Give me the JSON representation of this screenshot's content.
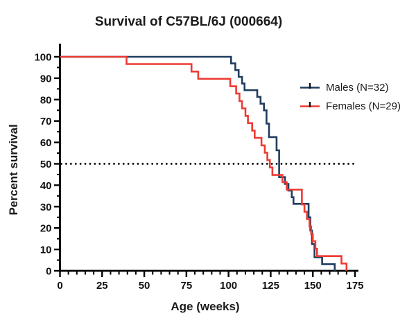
{
  "window": {
    "title": "Survival of C57BL/6J (000664)"
  },
  "chart_data": {
    "type": "line",
    "subtype": "kaplan-meier-survival-step",
    "title": "Survival of C57BL/6J (000664)",
    "xlabel": "Age (weeks)",
    "ylabel": "Percent survival",
    "xlim": [
      0,
      175
    ],
    "ylim": [
      0,
      100
    ],
    "x_ticks": [
      0,
      25,
      50,
      75,
      100,
      125,
      150,
      175
    ],
    "y_ticks": [
      0,
      10,
      20,
      30,
      40,
      50,
      60,
      70,
      80,
      90,
      100
    ],
    "x_minor_step": 5,
    "y_minor_step": 5,
    "grid": false,
    "legend_position": "right-upper-inside",
    "reference_line": {
      "y": 50,
      "style": "dotted",
      "color": "#000000"
    },
    "axis_color": "#000000",
    "series": [
      {
        "name": "Males (N=32)",
        "n": 32,
        "color": "#1F3D5F",
        "legend_marker": "line-with-censor-tick",
        "points": [
          [
            0,
            100
          ],
          [
            101.5,
            100
          ],
          [
            101.5,
            96.9
          ],
          [
            104,
            96.9
          ],
          [
            104,
            93.8
          ],
          [
            106,
            93.8
          ],
          [
            106,
            90.6
          ],
          [
            108,
            90.6
          ],
          [
            108,
            87.5
          ],
          [
            109.5,
            87.5
          ],
          [
            109.5,
            84.4
          ],
          [
            117,
            84.4
          ],
          [
            117,
            81.3
          ],
          [
            119,
            81.3
          ],
          [
            119,
            78.1
          ],
          [
            121,
            78.1
          ],
          [
            121,
            75
          ],
          [
            122.5,
            75
          ],
          [
            122.5,
            68.8
          ],
          [
            124,
            68.8
          ],
          [
            124,
            62.5
          ],
          [
            128.5,
            62.5
          ],
          [
            128.5,
            56.3
          ],
          [
            130,
            56.3
          ],
          [
            130,
            43.8
          ],
          [
            133.5,
            43.8
          ],
          [
            133.5,
            40.6
          ],
          [
            135.5,
            40.6
          ],
          [
            135.5,
            37.5
          ],
          [
            137.5,
            37.5
          ],
          [
            137.5,
            34.4
          ],
          [
            138.5,
            34.4
          ],
          [
            138.5,
            31.3
          ],
          [
            147.5,
            31.3
          ],
          [
            147.5,
            25
          ],
          [
            148.5,
            25
          ],
          [
            148.5,
            18.8
          ],
          [
            149.5,
            18.8
          ],
          [
            149.5,
            12.5
          ],
          [
            151,
            12.5
          ],
          [
            151,
            6.3
          ],
          [
            155.5,
            6.3
          ],
          [
            155.5,
            3.1
          ],
          [
            163,
            3.1
          ],
          [
            163,
            0
          ]
        ]
      },
      {
        "name": "Females (N=29)",
        "n": 29,
        "color": "#ED3B33",
        "legend_marker": "line-with-censor-tick",
        "points": [
          [
            0,
            100
          ],
          [
            39.5,
            100
          ],
          [
            39.5,
            96.6
          ],
          [
            78,
            96.6
          ],
          [
            78,
            93.1
          ],
          [
            82,
            93.1
          ],
          [
            82,
            89.7
          ],
          [
            101,
            89.7
          ],
          [
            101,
            86.2
          ],
          [
            104.5,
            86.2
          ],
          [
            104.5,
            82.8
          ],
          [
            106.5,
            82.8
          ],
          [
            106.5,
            79.3
          ],
          [
            108,
            79.3
          ],
          [
            108,
            75.9
          ],
          [
            110,
            75.9
          ],
          [
            110,
            72.4
          ],
          [
            111.5,
            72.4
          ],
          [
            111.5,
            69
          ],
          [
            114,
            69
          ],
          [
            114,
            65.5
          ],
          [
            115.5,
            65.5
          ],
          [
            115.5,
            62.1
          ],
          [
            119.5,
            62.1
          ],
          [
            119.5,
            58.6
          ],
          [
            121.5,
            58.6
          ],
          [
            121.5,
            55.2
          ],
          [
            123,
            55.2
          ],
          [
            123,
            51.7
          ],
          [
            124.5,
            51.7
          ],
          [
            124.5,
            48.3
          ],
          [
            126,
            48.3
          ],
          [
            126,
            44.8
          ],
          [
            132,
            44.8
          ],
          [
            132,
            41.4
          ],
          [
            134.5,
            41.4
          ],
          [
            134.5,
            37.9
          ],
          [
            143.5,
            37.9
          ],
          [
            143.5,
            31
          ],
          [
            145,
            31
          ],
          [
            145,
            27.6
          ],
          [
            146.5,
            27.6
          ],
          [
            146.5,
            24.1
          ],
          [
            148,
            24.1
          ],
          [
            148,
            20.7
          ],
          [
            149,
            20.7
          ],
          [
            149,
            17.2
          ],
          [
            150,
            17.2
          ],
          [
            150,
            13.8
          ],
          [
            151.5,
            13.8
          ],
          [
            151.5,
            10.3
          ],
          [
            152.5,
            10.3
          ],
          [
            152.5,
            6.9
          ],
          [
            167,
            6.9
          ],
          [
            167,
            3.4
          ],
          [
            170,
            3.4
          ],
          [
            170,
            0
          ]
        ]
      }
    ]
  },
  "colors": {
    "background": "#FFFFFF",
    "axis": "#000000",
    "text": "#1B1B1B"
  }
}
